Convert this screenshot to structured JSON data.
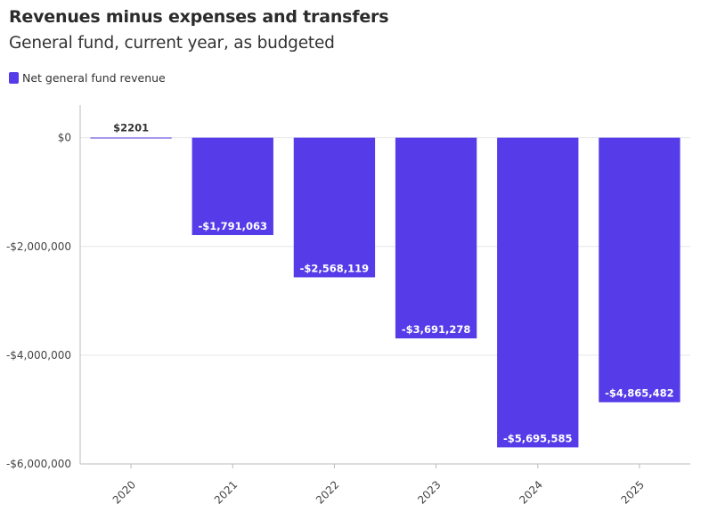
{
  "chart_data": {
    "type": "bar",
    "title": "Revenues minus expenses and transfers",
    "subtitle": "General fund, current year, as budgeted",
    "categories": [
      "2020",
      "2021",
      "2022",
      "2023",
      "2024",
      "2025"
    ],
    "series": [
      {
        "name": "Net general fund revenue",
        "values": [
          2201,
          -1791063,
          -2568119,
          -3691278,
          -5695585,
          -4865482
        ],
        "labels": [
          "$2201",
          "-$1,791,063",
          "-$2,568,119",
          "-$3,691,278",
          "-$5,695,585",
          "-$4,865,482"
        ]
      }
    ],
    "y_ticks": [
      0,
      -2000000,
      -4000000,
      -6000000
    ],
    "y_tick_labels": [
      "$0",
      "-$2,000,000",
      "-$4,000,000",
      "-$6,000,000"
    ],
    "ylim": [
      -6000000,
      600000
    ],
    "xlabel": "",
    "ylabel": "",
    "legend_position": "top-left",
    "grid": true,
    "colors": {
      "bar": "#553ce8",
      "grid": "#e6e6e6",
      "axis": "#bbbbbb"
    }
  }
}
